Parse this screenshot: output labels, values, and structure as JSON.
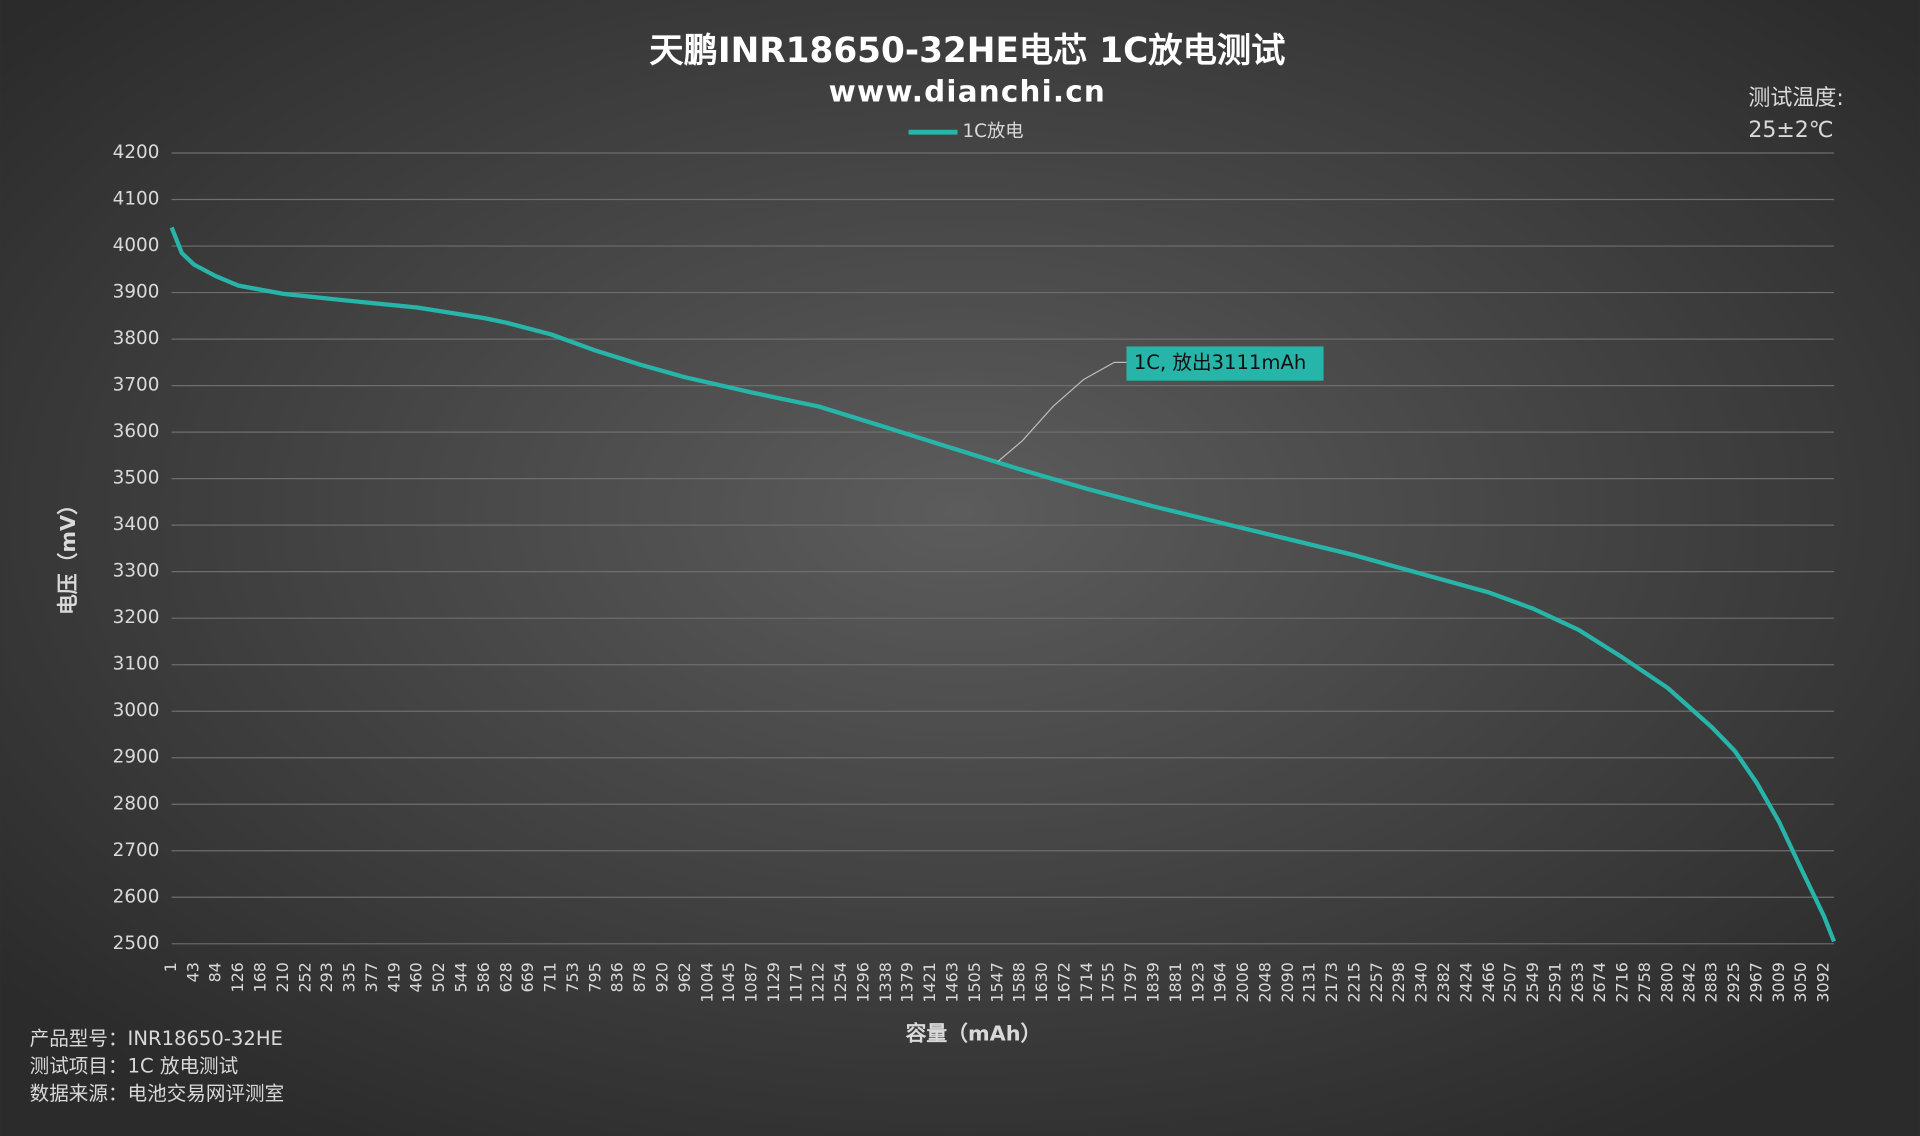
{
  "chart_data": {
    "type": "line",
    "title": "天鹏INR18650-32HE电芯 1C放电测试",
    "subtitle": "www.dianchi.cn",
    "x_label": "容量（mAh）",
    "y_label": "电压（mV）",
    "temperature_title": "测试温度:",
    "temperature": "25±2℃",
    "annotation": "1C, 放出3111mAh",
    "notes": [
      "产品型号：INR18650-32HE",
      "测试项目：1C 放电测试",
      "数据来源：电池交易网评测室"
    ],
    "x": [
      1,
      20,
      43,
      84,
      126,
      210,
      335,
      460,
      586,
      628,
      711,
      795,
      878,
      962,
      1087,
      1212,
      1338,
      1463,
      1588,
      1714,
      1839,
      1964,
      2090,
      2215,
      2340,
      2466,
      2549,
      2633,
      2716,
      2800,
      2883,
      2925,
      2967,
      3009,
      3050,
      3092,
      3111
    ],
    "series": [
      {
        "name": "1C放电",
        "color": "#26b5a8",
        "values": [
          4040,
          3985,
          3960,
          3935,
          3915,
          3897,
          3882,
          3868,
          3845,
          3835,
          3810,
          3775,
          3745,
          3718,
          3685,
          3655,
          3610,
          3565,
          3520,
          3478,
          3440,
          3405,
          3370,
          3335,
          3295,
          3255,
          3220,
          3175,
          3115,
          3050,
          2965,
          2915,
          2845,
          2760,
          2660,
          2560,
          2505
        ]
      }
    ],
    "xlim": [
      1,
      3111
    ],
    "xticks": [
      1,
      43,
      84,
      126,
      168,
      210,
      252,
      293,
      335,
      377,
      419,
      460,
      502,
      544,
      586,
      628,
      669,
      711,
      753,
      795,
      836,
      878,
      920,
      962,
      1004,
      1045,
      1087,
      1129,
      1171,
      1212,
      1254,
      1296,
      1338,
      1379,
      1421,
      1463,
      1505,
      1547,
      1588,
      1630,
      1672,
      1714,
      1755,
      1797,
      1839,
      1881,
      1923,
      1964,
      2006,
      2048,
      2090,
      2131,
      2173,
      2215,
      2257,
      2298,
      2340,
      2382,
      2424,
      2466,
      2507,
      2549,
      2591,
      2633,
      2674,
      2716,
      2758,
      2800,
      2842,
      2883,
      2925,
      2967,
      3009,
      3050,
      3092
    ],
    "ylim": [
      2500,
      4200
    ],
    "yticks": [
      2500,
      2600,
      2700,
      2800,
      2900,
      3000,
      3100,
      3200,
      3300,
      3400,
      3500,
      3600,
      3700,
      3800,
      3900,
      4000,
      4100,
      4200
    ],
    "grid": true,
    "legend": "top"
  }
}
